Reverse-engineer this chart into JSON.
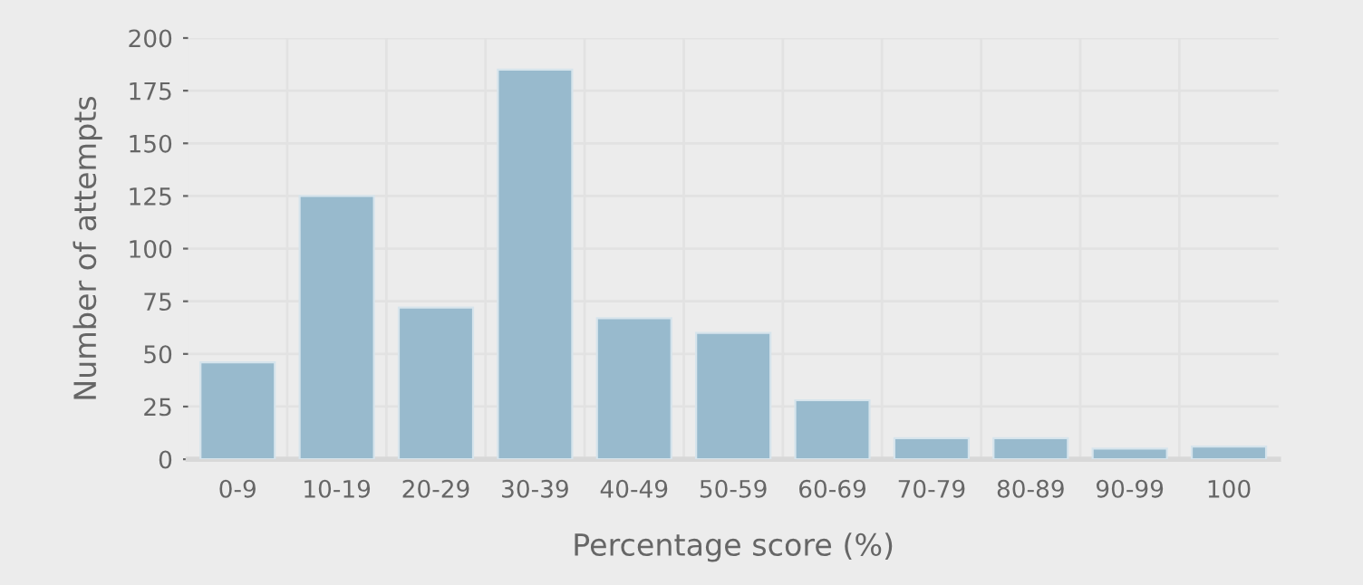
{
  "chart_data": {
    "type": "bar",
    "xlabel": "Percentage score (%)",
    "ylabel": "Number of attempts",
    "categories": [
      "0-9",
      "10-19",
      "20-29",
      "30-39",
      "40-49",
      "50-59",
      "60-69",
      "70-79",
      "80-89",
      "90-99",
      "100"
    ],
    "values": [
      46,
      125,
      72,
      185,
      67,
      60,
      28,
      10,
      10,
      5,
      6
    ],
    "color": "#98bacd",
    "ylim": [
      0,
      200
    ],
    "yticks": [
      0,
      25,
      50,
      75,
      100,
      125,
      150,
      175,
      200
    ],
    "grid": true
  }
}
